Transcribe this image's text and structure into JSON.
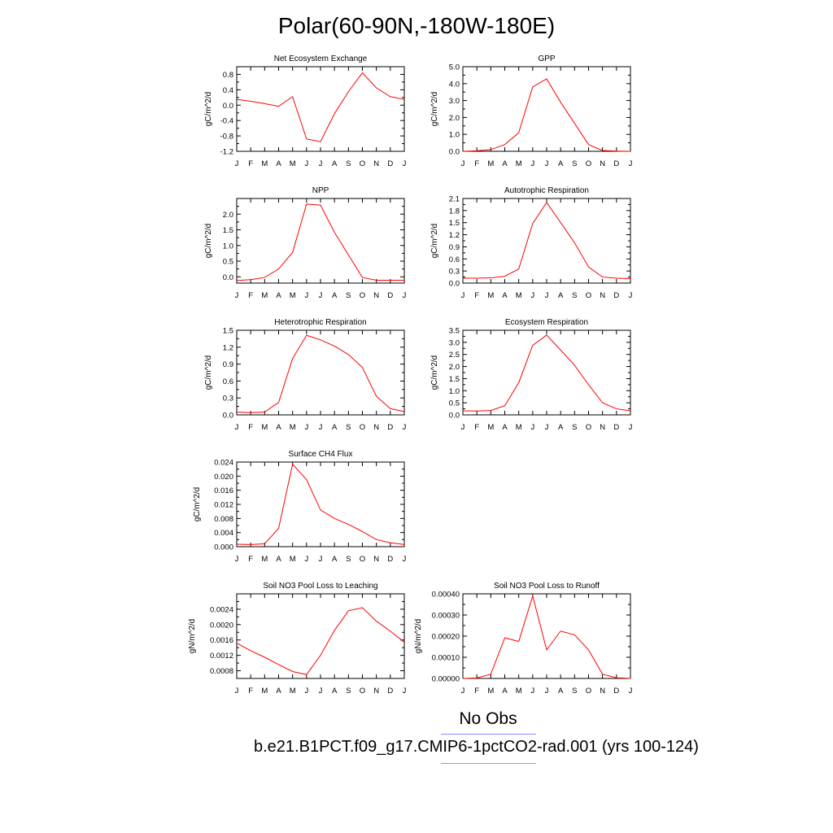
{
  "page": {
    "title": "Polar(60-90N,-180W-180E)"
  },
  "legend": {
    "obs_label": "No Obs",
    "obs_color": "#8a8aff",
    "model_label": "b.e21.B1PCT.f09_g17.CMIP6-1pctCO2-rad.001 (yrs 100-124)",
    "model_color": "#ff7a7a"
  },
  "chart_data": [
    {
      "type": "line",
      "title": "Net Ecosystem Exchange",
      "ylabel": "gC/m^2/d",
      "categories": [
        "J",
        "F",
        "M",
        "A",
        "M",
        "J",
        "J",
        "A",
        "S",
        "O",
        "N",
        "D",
        "J"
      ],
      "ylim": [
        -1.2,
        1.0
      ],
      "yticks": [
        "0.8",
        "0.4",
        "0.0",
        "-0.4",
        "-0.8",
        "-1.2"
      ],
      "ytick_values": [
        0.8,
        0.4,
        0.0,
        -0.4,
        -0.8,
        -1.2
      ],
      "series": [
        {
          "color": "#ff0000",
          "values": [
            0.15,
            0.1,
            0.04,
            -0.03,
            0.22,
            -0.88,
            -0.95,
            -0.22,
            0.35,
            0.84,
            0.45,
            0.22,
            0.15
          ]
        }
      ]
    },
    {
      "type": "line",
      "title": "GPP",
      "ylabel": "gC/m^2/d",
      "categories": [
        "J",
        "F",
        "M",
        "A",
        "M",
        "J",
        "J",
        "A",
        "S",
        "O",
        "N",
        "D",
        "J"
      ],
      "ylim": [
        0,
        5.0
      ],
      "yticks": [
        "5.0",
        "4.0",
        "3.0",
        "2.0",
        "1.0",
        "0.0"
      ],
      "ytick_values": [
        5,
        4,
        3,
        2,
        1,
        0
      ],
      "series": [
        {
          "color": "#ff0000",
          "values": [
            0.0,
            0.03,
            0.1,
            0.4,
            1.1,
            3.8,
            4.28,
            2.9,
            1.65,
            0.4,
            0.05,
            0.01,
            0.0
          ]
        }
      ]
    },
    {
      "type": "line",
      "title": "NPP",
      "ylabel": "gC/m^2/d",
      "categories": [
        "J",
        "F",
        "M",
        "A",
        "M",
        "J",
        "J",
        "A",
        "S",
        "O",
        "N",
        "D",
        "J"
      ],
      "ylim": [
        -0.2,
        2.5
      ],
      "yticks": [
        "2.0",
        "1.5",
        "1.0",
        "0.5",
        "0.0"
      ],
      "ytick_values": [
        2.0,
        1.5,
        1.0,
        0.5,
        0.0
      ],
      "series": [
        {
          "color": "#ff0000",
          "values": [
            -0.12,
            -0.09,
            -0.02,
            0.25,
            0.78,
            2.32,
            2.29,
            1.42,
            0.7,
            -0.02,
            -0.11,
            -0.11,
            -0.11
          ]
        }
      ]
    },
    {
      "type": "line",
      "title": "Autotrophic Respiration",
      "ylabel": "gC/m^2/d",
      "categories": [
        "J",
        "F",
        "M",
        "A",
        "M",
        "J",
        "J",
        "A",
        "S",
        "O",
        "N",
        "D",
        "J"
      ],
      "ylim": [
        0,
        2.1
      ],
      "yticks": [
        "2.1",
        "1.8",
        "1.5",
        "1.2",
        "0.9",
        "0.6",
        "0.3",
        "0.0"
      ],
      "ytick_values": [
        2.1,
        1.8,
        1.5,
        1.2,
        0.9,
        0.6,
        0.3,
        0.0
      ],
      "series": [
        {
          "color": "#ff0000",
          "values": [
            0.12,
            0.12,
            0.13,
            0.17,
            0.35,
            1.48,
            2.0,
            1.5,
            1.0,
            0.4,
            0.15,
            0.12,
            0.11
          ]
        }
      ]
    },
    {
      "type": "line",
      "title": "Heterotrophic Respiration",
      "ylabel": "gC/m^2/d",
      "categories": [
        "J",
        "F",
        "M",
        "A",
        "M",
        "J",
        "J",
        "A",
        "S",
        "O",
        "N",
        "D",
        "J"
      ],
      "ylim": [
        0,
        1.5
      ],
      "yticks": [
        "1.5",
        "1.2",
        "0.9",
        "0.6",
        "0.3",
        "0.0"
      ],
      "ytick_values": [
        1.5,
        1.2,
        0.9,
        0.6,
        0.3,
        0.0
      ],
      "series": [
        {
          "color": "#ff0000",
          "values": [
            0.05,
            0.04,
            0.05,
            0.22,
            1.0,
            1.41,
            1.33,
            1.22,
            1.07,
            0.84,
            0.33,
            0.11,
            0.06
          ]
        }
      ]
    },
    {
      "type": "line",
      "title": "Ecosystem Respiration",
      "ylabel": "gC/m^2/d",
      "categories": [
        "J",
        "F",
        "M",
        "A",
        "M",
        "J",
        "J",
        "A",
        "S",
        "O",
        "N",
        "D",
        "J"
      ],
      "ylim": [
        0,
        3.5
      ],
      "yticks": [
        "3.5",
        "3.0",
        "2.5",
        "2.0",
        "1.5",
        "1.0",
        "0.5",
        "0.0"
      ],
      "ytick_values": [
        3.5,
        3.0,
        2.5,
        2.0,
        1.5,
        1.0,
        0.5,
        0.0
      ],
      "series": [
        {
          "color": "#ff0000",
          "values": [
            0.17,
            0.16,
            0.18,
            0.38,
            1.33,
            2.88,
            3.3,
            2.68,
            2.05,
            1.25,
            0.5,
            0.25,
            0.17
          ]
        }
      ]
    },
    {
      "type": "line",
      "title": "Surface CH4 Flux",
      "ylabel": "gC/m^2/d",
      "categories": [
        "J",
        "F",
        "M",
        "A",
        "M",
        "J",
        "J",
        "A",
        "S",
        "O",
        "N",
        "D",
        "J"
      ],
      "ylim": [
        0,
        0.024
      ],
      "yticks": [
        "0.024",
        "0.020",
        "0.016",
        "0.012",
        "0.008",
        "0.004",
        "0.000"
      ],
      "ytick_values": [
        0.024,
        0.02,
        0.016,
        0.012,
        0.008,
        0.004,
        0.0
      ],
      "series": [
        {
          "color": "#ff0000",
          "values": [
            0.0007,
            0.0006,
            0.0008,
            0.0052,
            0.0234,
            0.019,
            0.0104,
            0.008,
            0.0063,
            0.0043,
            0.002,
            0.0011,
            0.0006
          ]
        }
      ]
    },
    {
      "type": "line",
      "title": "Soil NO3 Pool Loss to Leaching",
      "ylabel": "gN/m^2/d",
      "categories": [
        "J",
        "F",
        "M",
        "A",
        "M",
        "J",
        "J",
        "A",
        "S",
        "O",
        "N",
        "D",
        "J"
      ],
      "ylim": [
        0.0006,
        0.0028
      ],
      "yticks": [
        "0.0024",
        "0.0020",
        "0.0016",
        "0.0012",
        "0.0008"
      ],
      "ytick_values": [
        0.0024,
        0.002,
        0.0016,
        0.0012,
        0.0008
      ],
      "series": [
        {
          "color": "#ff0000",
          "values": [
            0.00152,
            0.00132,
            0.00115,
            0.00096,
            0.00078,
            0.0007,
            0.0012,
            0.00185,
            0.00236,
            0.00244,
            0.00209,
            0.00183,
            0.00154
          ]
        }
      ]
    },
    {
      "type": "line",
      "title": "Soil NO3 Pool Loss to Runoff",
      "ylabel": "gN/m^2/d",
      "categories": [
        "J",
        "F",
        "M",
        "A",
        "M",
        "J",
        "J",
        "A",
        "S",
        "O",
        "N",
        "D",
        "J"
      ],
      "ylim": [
        0,
        0.0004
      ],
      "yticks": [
        "0.00040",
        "0.00030",
        "0.00020",
        "0.00010",
        "0.00000"
      ],
      "ytick_values": [
        0.0004,
        0.0003,
        0.0002,
        0.0001,
        0.0
      ],
      "series": [
        {
          "color": "#ff0000",
          "values": [
            0.0,
            2e-06,
            2e-05,
            0.000192,
            0.000175,
            0.00039,
            0.000135,
            0.000224,
            0.000206,
            0.000135,
            2e-05,
            3e-06,
            0.0
          ]
        }
      ]
    }
  ]
}
